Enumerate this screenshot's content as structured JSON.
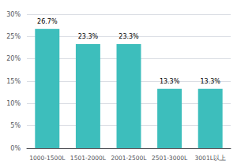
{
  "chart_data": {
    "type": "bar",
    "categories": [
      "1000-1500L",
      "1501-2000L",
      "2001-2500L",
      "2501-3000L",
      "3001L以上"
    ],
    "values": [
      26.7,
      23.3,
      23.3,
      13.3,
      13.3
    ],
    "value_labels": [
      "26.7%",
      "23.3%",
      "23.3%",
      "13.3%",
      "13.3%"
    ],
    "data_labels": true,
    "color": "#3DBEBC",
    "ylim": [
      0,
      30
    ],
    "yticks": [
      {
        "value": 0,
        "label": "0%"
      },
      {
        "value": 5,
        "label": "5%"
      },
      {
        "value": 10,
        "label": "10%"
      },
      {
        "value": 15,
        "label": "15%"
      },
      {
        "value": 20,
        "label": "20%"
      },
      {
        "value": 25,
        "label": "25%"
      },
      {
        "value": 30,
        "label": "30%"
      }
    ],
    "grid": true
  }
}
